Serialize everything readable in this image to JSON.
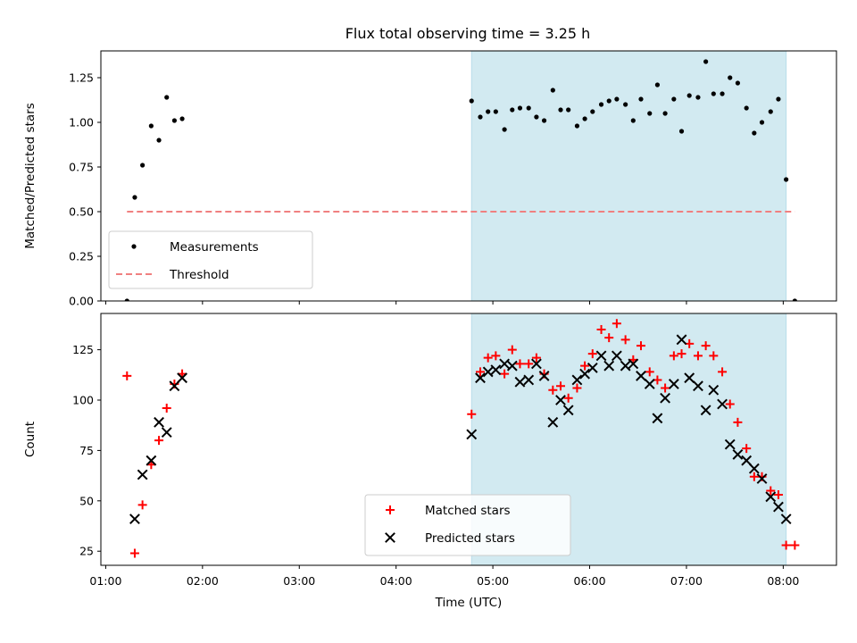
{
  "chart_data": [
    {
      "type": "scatter",
      "title": "Flux total observing time = 3.25 h",
      "ylabel": "Matched/Predicted stars",
      "xlabel": "",
      "xlim": [
        0.95,
        8.55
      ],
      "ylim": [
        0,
        1.4
      ],
      "yticks": [
        "0.00",
        "0.25",
        "0.50",
        "0.75",
        "1.00",
        "1.25"
      ],
      "shaded_region": {
        "x_start": 4.78,
        "x_end": 8.03,
        "color": "#add8e6"
      },
      "legend": {
        "placement": "bottom-left",
        "entries": [
          "Measurements",
          "Threshold"
        ]
      },
      "series": [
        {
          "name": "Measurements",
          "marker": "dot",
          "color": "#000000",
          "points": [
            [
              1.22,
              0.0
            ],
            [
              1.3,
              0.58
            ],
            [
              1.38,
              0.76
            ],
            [
              1.47,
              0.98
            ],
            [
              1.55,
              0.9
            ],
            [
              1.63,
              1.14
            ],
            [
              1.71,
              1.01
            ],
            [
              1.79,
              1.02
            ],
            [
              4.78,
              1.12
            ],
            [
              4.87,
              1.03
            ],
            [
              4.95,
              1.06
            ],
            [
              5.03,
              1.06
            ],
            [
              5.12,
              0.96
            ],
            [
              5.2,
              1.07
            ],
            [
              5.28,
              1.08
            ],
            [
              5.37,
              1.08
            ],
            [
              5.45,
              1.03
            ],
            [
              5.53,
              1.01
            ],
            [
              5.62,
              1.18
            ],
            [
              5.7,
              1.07
            ],
            [
              5.78,
              1.07
            ],
            [
              5.87,
              0.98
            ],
            [
              5.95,
              1.02
            ],
            [
              6.03,
              1.06
            ],
            [
              6.12,
              1.1
            ],
            [
              6.2,
              1.12
            ],
            [
              6.28,
              1.13
            ],
            [
              6.37,
              1.1
            ],
            [
              6.45,
              1.01
            ],
            [
              6.53,
              1.13
            ],
            [
              6.62,
              1.05
            ],
            [
              6.7,
              1.21
            ],
            [
              6.78,
              1.05
            ],
            [
              6.87,
              1.13
            ],
            [
              6.95,
              0.95
            ],
            [
              7.03,
              1.15
            ],
            [
              7.12,
              1.14
            ],
            [
              7.2,
              1.34
            ],
            [
              7.28,
              1.16
            ],
            [
              7.37,
              1.16
            ],
            [
              7.45,
              1.25
            ],
            [
              7.53,
              1.22
            ],
            [
              7.62,
              1.08
            ],
            [
              7.7,
              0.94
            ],
            [
              7.78,
              1.0
            ],
            [
              7.87,
              1.06
            ],
            [
              7.95,
              1.13
            ],
            [
              8.03,
              0.68
            ],
            [
              8.12,
              0.0
            ]
          ]
        },
        {
          "name": "Threshold",
          "style": "dashed",
          "color": "#f08080",
          "x": [
            1.22,
            8.12
          ],
          "y": [
            0.5,
            0.5
          ]
        }
      ]
    },
    {
      "type": "scatter",
      "title": "",
      "ylabel": "Count",
      "xlabel": "Time (UTC)",
      "xlim": [
        0.95,
        8.55
      ],
      "ylim": [
        18,
        143
      ],
      "yticks": [
        "25",
        "50",
        "75",
        "100",
        "125"
      ],
      "xticks": [
        "01:00",
        "02:00",
        "03:00",
        "04:00",
        "05:00",
        "06:00",
        "07:00",
        "08:00"
      ],
      "shaded_region": {
        "x_start": 4.78,
        "x_end": 8.03,
        "color": "#add8e6"
      },
      "legend": {
        "placement": "bottom-center",
        "entries": [
          "Matched stars",
          "Predicted stars"
        ]
      },
      "series": [
        {
          "name": "Matched stars",
          "marker": "plus",
          "color": "#ff0000",
          "points": [
            [
              1.22,
              112
            ],
            [
              1.3,
              24
            ],
            [
              1.38,
              48
            ],
            [
              1.47,
              68
            ],
            [
              1.55,
              80
            ],
            [
              1.63,
              96
            ],
            [
              1.71,
              108
            ],
            [
              1.79,
              113
            ],
            [
              4.78,
              93
            ],
            [
              4.87,
              114
            ],
            [
              4.95,
              121
            ],
            [
              5.03,
              122
            ],
            [
              5.12,
              113
            ],
            [
              5.2,
              125
            ],
            [
              5.28,
              118
            ],
            [
              5.37,
              118
            ],
            [
              5.45,
              121
            ],
            [
              5.53,
              113
            ],
            [
              5.62,
              105
            ],
            [
              5.7,
              107
            ],
            [
              5.78,
              101
            ],
            [
              5.87,
              106
            ],
            [
              5.95,
              117
            ],
            [
              6.03,
              123
            ],
            [
              6.12,
              135
            ],
            [
              6.2,
              131
            ],
            [
              6.28,
              138
            ],
            [
              6.37,
              130
            ],
            [
              6.45,
              120
            ],
            [
              6.53,
              127
            ],
            [
              6.62,
              114
            ],
            [
              6.7,
              110
            ],
            [
              6.78,
              106
            ],
            [
              6.87,
              122
            ],
            [
              6.95,
              123
            ],
            [
              7.03,
              128
            ],
            [
              7.12,
              122
            ],
            [
              7.2,
              127
            ],
            [
              7.28,
              122
            ],
            [
              7.37,
              114
            ],
            [
              7.45,
              98
            ],
            [
              7.53,
              89
            ],
            [
              7.62,
              76
            ],
            [
              7.7,
              62
            ],
            [
              7.78,
              62
            ],
            [
              7.87,
              55
            ],
            [
              7.95,
              53
            ],
            [
              8.03,
              28
            ],
            [
              8.12,
              28
            ]
          ]
        },
        {
          "name": "Predicted stars",
          "marker": "x",
          "color": "#000000",
          "points": [
            [
              1.3,
              41
            ],
            [
              1.38,
              63
            ],
            [
              1.47,
              70
            ],
            [
              1.55,
              89
            ],
            [
              1.63,
              84
            ],
            [
              1.71,
              107
            ],
            [
              1.79,
              111
            ],
            [
              4.78,
              83
            ],
            [
              4.87,
              111
            ],
            [
              4.95,
              114
            ],
            [
              5.03,
              115
            ],
            [
              5.12,
              118
            ],
            [
              5.2,
              117
            ],
            [
              5.28,
              109
            ],
            [
              5.37,
              110
            ],
            [
              5.45,
              118
            ],
            [
              5.53,
              112
            ],
            [
              5.62,
              89
            ],
            [
              5.7,
              100
            ],
            [
              5.78,
              95
            ],
            [
              5.87,
              110
            ],
            [
              5.95,
              113
            ],
            [
              6.03,
              116
            ],
            [
              6.12,
              122
            ],
            [
              6.2,
              117
            ],
            [
              6.28,
              122
            ],
            [
              6.37,
              117
            ],
            [
              6.45,
              118
            ],
            [
              6.53,
              112
            ],
            [
              6.62,
              108
            ],
            [
              6.7,
              91
            ],
            [
              6.78,
              101
            ],
            [
              6.87,
              108
            ],
            [
              6.95,
              130
            ],
            [
              7.03,
              111
            ],
            [
              7.12,
              107
            ],
            [
              7.2,
              95
            ],
            [
              7.28,
              105
            ],
            [
              7.37,
              98
            ],
            [
              7.45,
              78
            ],
            [
              7.53,
              73
            ],
            [
              7.62,
              70
            ],
            [
              7.7,
              66
            ],
            [
              7.78,
              61
            ],
            [
              7.87,
              52
            ],
            [
              7.95,
              47
            ],
            [
              8.03,
              41
            ]
          ]
        }
      ]
    }
  ]
}
